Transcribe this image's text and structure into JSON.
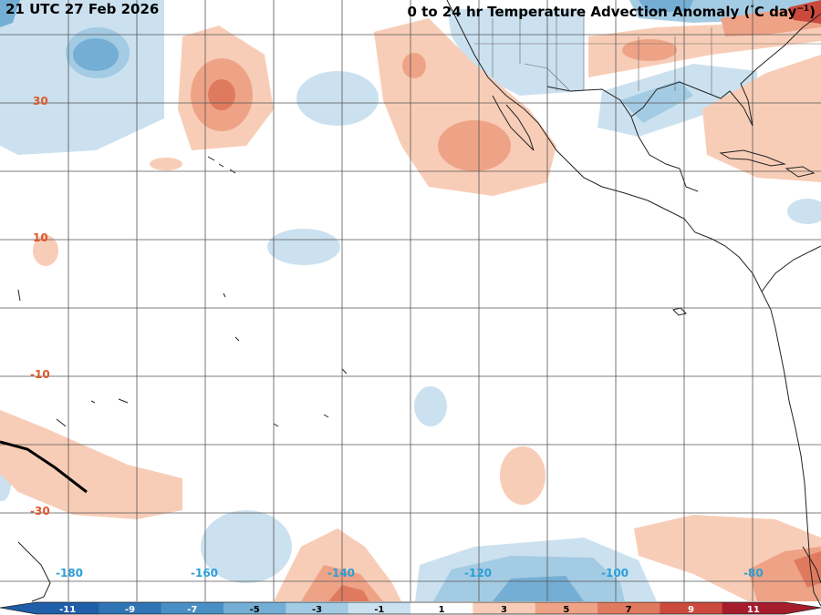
{
  "header": {
    "timestamp": "21 UTC 27 Feb 2026",
    "title_prefix": "0 to 24 hr Temperature Advection Anomaly (",
    "title_degree": "°",
    "title_unit": "C day",
    "title_exponent": "−1",
    "title_suffix": ")"
  },
  "latitude_labels": [
    "30",
    "10",
    "-10",
    "-30"
  ],
  "longitude_labels": [
    "-180",
    "-160",
    "-140",
    "-120",
    "-100",
    "-80"
  ],
  "colorbar": {
    "ticks": [
      "-11",
      "-9",
      "-7",
      "-5",
      "-3",
      "-1",
      "1",
      "3",
      "5",
      "7",
      "9",
      "11"
    ],
    "colors": [
      "#1f5ea8",
      "#2f74b5",
      "#4a8fc4",
      "#74aed5",
      "#a3cbe3",
      "#cbe1ef",
      "#ffffff",
      "#f8cdb7",
      "#eea387",
      "#e07a5e",
      "#cb4a3d",
      "#a61c2c"
    ]
  },
  "colors": {
    "warm_light": "#f8cdb7",
    "warm_mid": "#eea387",
    "warm_strong": "#e07a5e",
    "warm_deep": "#cb4a3d",
    "cool_light": "#cbe1ef",
    "cool_mid": "#a3cbe3",
    "cool_strong": "#74aed5",
    "cool_deep": "#4a8fc4",
    "lat_label": "#e0582b",
    "lon_label": "#2b9fd6"
  }
}
